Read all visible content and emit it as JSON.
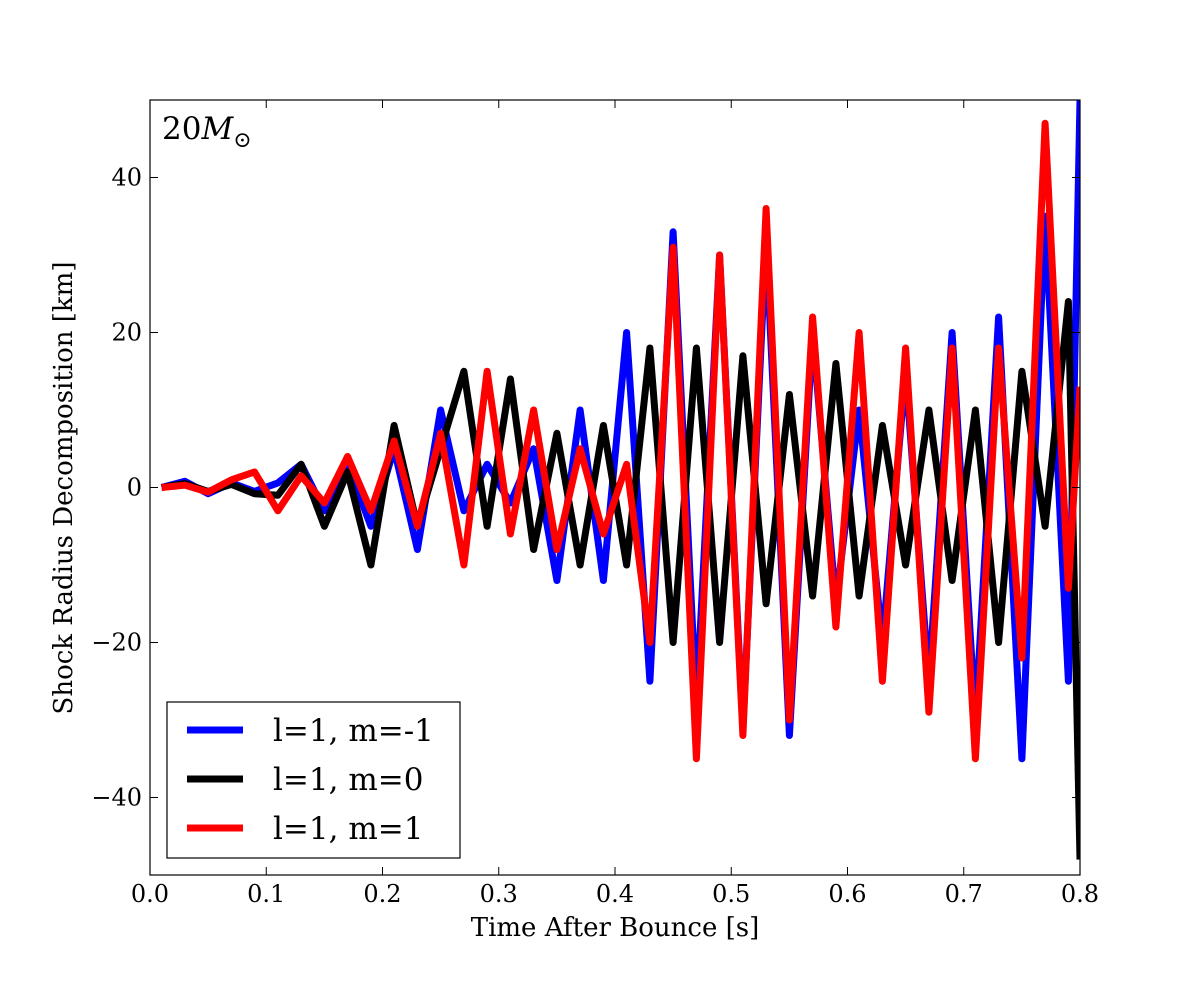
{
  "chart_data": {
    "type": "line",
    "title": "",
    "xlabel": "Time After Bounce [s]",
    "ylabel": "Shock Radius Decomposition [km]",
    "xlim": [
      0.0,
      0.8
    ],
    "ylim": [
      -50,
      50
    ],
    "xticks": [
      "0.0",
      "0.1",
      "0.2",
      "0.3",
      "0.4",
      "0.5",
      "0.6",
      "0.7",
      "0.8"
    ],
    "yticks": [
      "−40",
      "−20",
      "0",
      "20",
      "40"
    ],
    "ytick_values": [
      -40,
      -20,
      0,
      20,
      40
    ],
    "xtick_values": [
      0.0,
      0.1,
      0.2,
      0.3,
      0.4,
      0.5,
      0.6,
      0.7,
      0.8
    ],
    "grid": false,
    "legend_position": "bottom-left",
    "annotation": {
      "main": "20",
      "italic": "M",
      "subscript": "⊙"
    },
    "x": [
      0.01,
      0.03,
      0.05,
      0.07,
      0.09,
      0.11,
      0.13,
      0.15,
      0.17,
      0.19,
      0.21,
      0.23,
      0.25,
      0.27,
      0.29,
      0.31,
      0.33,
      0.35,
      0.37,
      0.39,
      0.41,
      0.43,
      0.45,
      0.47,
      0.49,
      0.51,
      0.53,
      0.55,
      0.57,
      0.59,
      0.61,
      0.63,
      0.65,
      0.67,
      0.69,
      0.71,
      0.73,
      0.75,
      0.77,
      0.79,
      0.8
    ],
    "series": [
      {
        "name": "l=1, m=-1",
        "color": "#0000ff",
        "values": [
          0,
          0.8,
          -0.8,
          0.6,
          -0.5,
          0.6,
          3,
          -3,
          3,
          -5,
          5,
          -8,
          10,
          -3,
          3,
          -2,
          5,
          -12,
          10,
          -12,
          20,
          -25,
          33,
          -28,
          30,
          -31,
          32,
          -32,
          20,
          -15,
          10,
          -20,
          15,
          -25,
          20,
          -30,
          22,
          -35,
          35,
          -25,
          50
        ]
      },
      {
        "name": "l=1, m=0",
        "color": "#000000",
        "values": [
          0,
          0.5,
          -0.5,
          0.4,
          -0.8,
          -1,
          3,
          -5,
          2,
          -10,
          8,
          -5,
          5,
          15,
          -5,
          14,
          -8,
          7,
          -10,
          8,
          -10,
          18,
          -20,
          18,
          -20,
          17,
          -15,
          12,
          -14,
          16,
          -14,
          8,
          -10,
          10,
          -12,
          10,
          -20,
          15,
          -5,
          24,
          -48
        ]
      },
      {
        "name": "l=1, m=1",
        "color": "#ff0000",
        "values": [
          0,
          0.3,
          -0.6,
          1,
          2,
          -3,
          1.5,
          -2,
          4,
          -3,
          6,
          -5,
          7,
          -10,
          15,
          -6,
          10,
          -8,
          5,
          -6,
          3,
          -20,
          31,
          -35,
          30,
          -32,
          36,
          -30,
          22,
          -18,
          20,
          -25,
          18,
          -29,
          18,
          -35,
          18,
          -22,
          47,
          -13,
          13
        ]
      }
    ]
  }
}
